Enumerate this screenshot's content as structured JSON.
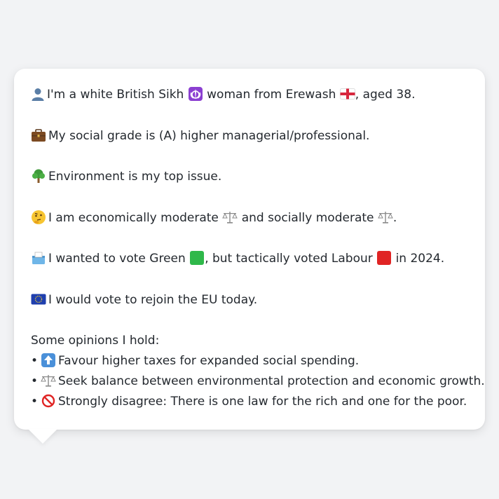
{
  "colors": {
    "green": "#2fb84a",
    "red": "#e02424",
    "khanda_bg": "#8b3fd1",
    "eu_blue": "#1f3fae"
  },
  "profile": {
    "identity": {
      "icon": "person-icon",
      "text_1": "I'm a white British Sikh",
      "religion_icon": "khanda-icon",
      "text_2": "woman from Erewash",
      "flag_icon": "england-flag-icon",
      "text_3": ", aged 38."
    },
    "social_grade": {
      "icon": "briefcase-icon",
      "text": "My social grade is (A) higher managerial/professional."
    },
    "top_issue": {
      "icon": "tree-icon",
      "text": "Environment is my top issue."
    },
    "ideology": {
      "icon": "thinking-face-icon",
      "text_1": "I am economically moderate",
      "text_2": "and socially moderate",
      "text_3": "."
    },
    "vote": {
      "icon": "ballot-box-icon",
      "text_1": "I wanted to vote Green",
      "text_2": ", but tactically voted Labour",
      "text_3": "in 2024."
    },
    "eu": {
      "icon": "eu-flag-icon",
      "text": "I would vote to rejoin the EU today."
    }
  },
  "opinions": {
    "heading": "Some opinions I hold:",
    "items": [
      {
        "icon": "up-arrow-icon",
        "text": "Favour higher taxes for expanded social spending."
      },
      {
        "icon": "scales-icon",
        "text": "Seek balance between environmental protection and economic growth."
      },
      {
        "icon": "prohibited-icon",
        "text": "Strongly disagree: There is one law for the rich and one for the poor."
      }
    ]
  }
}
